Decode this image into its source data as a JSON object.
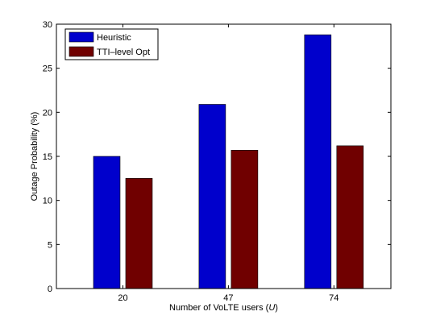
{
  "chart_data": {
    "type": "bar",
    "title": "",
    "xlabel": "Number of VoLTE users (",
    "xlabel_var": "U",
    "xlabel_close": ")",
    "ylabel": "Outage Probability (%)",
    "categories": [
      "20",
      "47",
      "74"
    ],
    "series": [
      {
        "name": "Heuristic",
        "color": "#0000CC",
        "values": [
          15.0,
          20.9,
          28.8
        ]
      },
      {
        "name": "TTI–level Opt",
        "color": "#700000",
        "values": [
          12.5,
          15.7,
          16.2
        ]
      }
    ],
    "ylim": [
      0,
      30
    ],
    "yticks": [
      0,
      5,
      10,
      15,
      20,
      25,
      30
    ],
    "grid": false,
    "legend_position": "top-left"
  }
}
